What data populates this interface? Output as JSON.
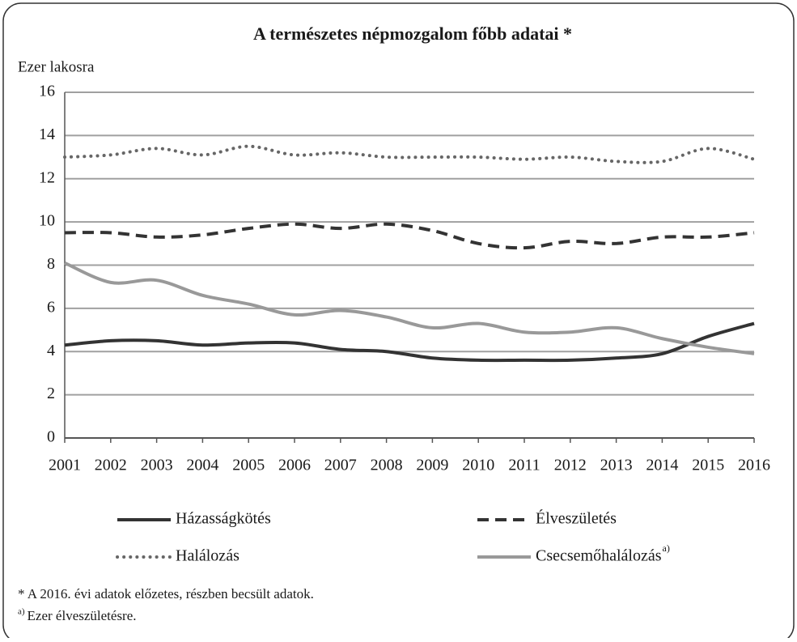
{
  "chart_data": {
    "type": "line",
    "title": "A természetes népmozgalom főbb adatai *",
    "y_label": "Ezer lakosra",
    "categories": [
      "2001",
      "2002",
      "2003",
      "2004",
      "2005",
      "2006",
      "2007",
      "2008",
      "2009",
      "2010",
      "2011",
      "2012",
      "2013",
      "2014",
      "2015",
      "2016"
    ],
    "series": [
      {
        "name": "Házasságkötés",
        "color": "#333333",
        "style": "solid",
        "values": [
          4.3,
          4.5,
          4.5,
          4.3,
          4.4,
          4.4,
          4.1,
          4.0,
          3.7,
          3.6,
          3.6,
          3.6,
          3.7,
          3.9,
          4.7,
          5.3
        ]
      },
      {
        "name": "Élveszületés",
        "color": "#333333",
        "style": "dashed",
        "values": [
          9.5,
          9.5,
          9.3,
          9.4,
          9.7,
          9.9,
          9.7,
          9.9,
          9.6,
          9.0,
          8.8,
          9.1,
          9.0,
          9.3,
          9.3,
          9.5
        ]
      },
      {
        "name": "Halálozás",
        "color": "#666666",
        "style": "dotted",
        "values": [
          13.0,
          13.1,
          13.4,
          13.1,
          13.5,
          13.1,
          13.2,
          13.0,
          13.0,
          13.0,
          12.9,
          13.0,
          12.8,
          12.8,
          13.4,
          12.9
        ]
      },
      {
        "name": "Csecsemőhalálozás",
        "name_sup": "a)",
        "color": "#999999",
        "style": "solid",
        "values": [
          8.1,
          7.2,
          7.3,
          6.6,
          6.2,
          5.7,
          5.9,
          5.6,
          5.1,
          5.3,
          4.9,
          4.9,
          5.1,
          4.6,
          4.2,
          3.9
        ]
      }
    ],
    "ylim": [
      0,
      16
    ],
    "yticks": [
      0,
      2,
      4,
      6,
      8,
      10,
      12,
      14,
      16
    ],
    "grid": true,
    "legend": "bottom",
    "footnotes": [
      {
        "text": "* A 2016. évi adatok előzetes, részben becsült adatok."
      },
      {
        "sup": "a)",
        "text": "Ezer élveszületésre."
      }
    ]
  }
}
